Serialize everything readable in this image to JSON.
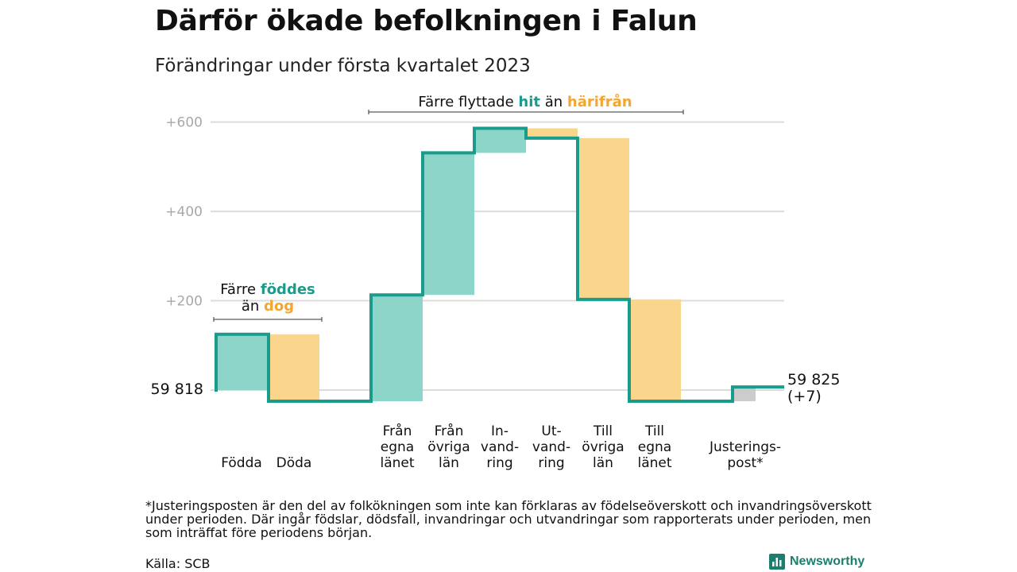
{
  "title": "Därför ökade befolkningen i Falun",
  "subtitle": "Förändringar under första kvartalet 2023",
  "colors": {
    "increase": "#8dd5c9",
    "decrease": "#fad68c",
    "adjustment": "#cccccc",
    "line": "#1a9c8c",
    "grid": "#dcdcdc",
    "tick": "#a8a8a8",
    "teal_text": "#1a9c8c",
    "orange_text": "#f3a630"
  },
  "chart_data": {
    "type": "waterfall",
    "y_ticks": [
      "+200",
      "+400",
      "+600"
    ],
    "ylim": [
      -25,
      620
    ],
    "grid": true,
    "start": {
      "label": "59 818",
      "value": 0
    },
    "end": {
      "label": "59 825",
      "change_label": "(+7)",
      "value": 7
    },
    "steps": [
      {
        "id": "fodda",
        "label_lines": [
          "Födda"
        ],
        "value": 125,
        "kind": "increase"
      },
      {
        "id": "doda",
        "label_lines": [
          "Döda"
        ],
        "value": -150,
        "kind": "decrease"
      },
      {
        "id": "fran-egna",
        "label_lines": [
          "Från",
          "egna",
          "länet"
        ],
        "value": 238,
        "kind": "increase"
      },
      {
        "id": "fran-ovriga",
        "label_lines": [
          "Från",
          "övriga",
          "län"
        ],
        "value": 318,
        "kind": "increase"
      },
      {
        "id": "invandring",
        "label_lines": [
          "In-",
          "vand-",
          "ring"
        ],
        "value": 55,
        "kind": "increase"
      },
      {
        "id": "utvandring",
        "label_lines": [
          "Ut-",
          "vand-",
          "ring"
        ],
        "value": -22,
        "kind": "decrease"
      },
      {
        "id": "till-ovriga",
        "label_lines": [
          "Till",
          "övriga",
          "län"
        ],
        "value": -361,
        "kind": "decrease"
      },
      {
        "id": "till-egna",
        "label_lines": [
          "Till",
          "egna",
          "länet"
        ],
        "value": -228,
        "kind": "decrease"
      },
      {
        "id": "justering",
        "label_lines": [
          "Justerings-",
          "post*"
        ],
        "value": 32,
        "kind": "adjustment"
      }
    ],
    "annotations": [
      {
        "id": "births",
        "lines": [
          [
            {
              "text": "Färre ",
              "style": "plain"
            },
            {
              "text": "föddes",
              "style": "teal"
            }
          ],
          [
            {
              "text": "än ",
              "style": "plain"
            },
            {
              "text": "dog",
              "style": "orange"
            }
          ]
        ]
      },
      {
        "id": "moves",
        "lines": [
          [
            {
              "text": "Färre flyttade ",
              "style": "plain"
            },
            {
              "text": "hit",
              "style": "teal"
            },
            {
              "text": " än ",
              "style": "plain"
            },
            {
              "text": "härifrån",
              "style": "orange"
            }
          ]
        ]
      }
    ]
  },
  "footnote": "*Justeringsposten är den del av folkökningen som inte kan förklaras av födelseöverskott och invandringsöverskott under perioden. Där ingår födslar, dödsfall, invandringar och utvandringar som rapporterats under perioden, men som inträffat före periodens början.",
  "source": "Källa: SCB",
  "brand": {
    "name": "Newsworthy",
    "icon": "bar-chart-logo-icon"
  }
}
